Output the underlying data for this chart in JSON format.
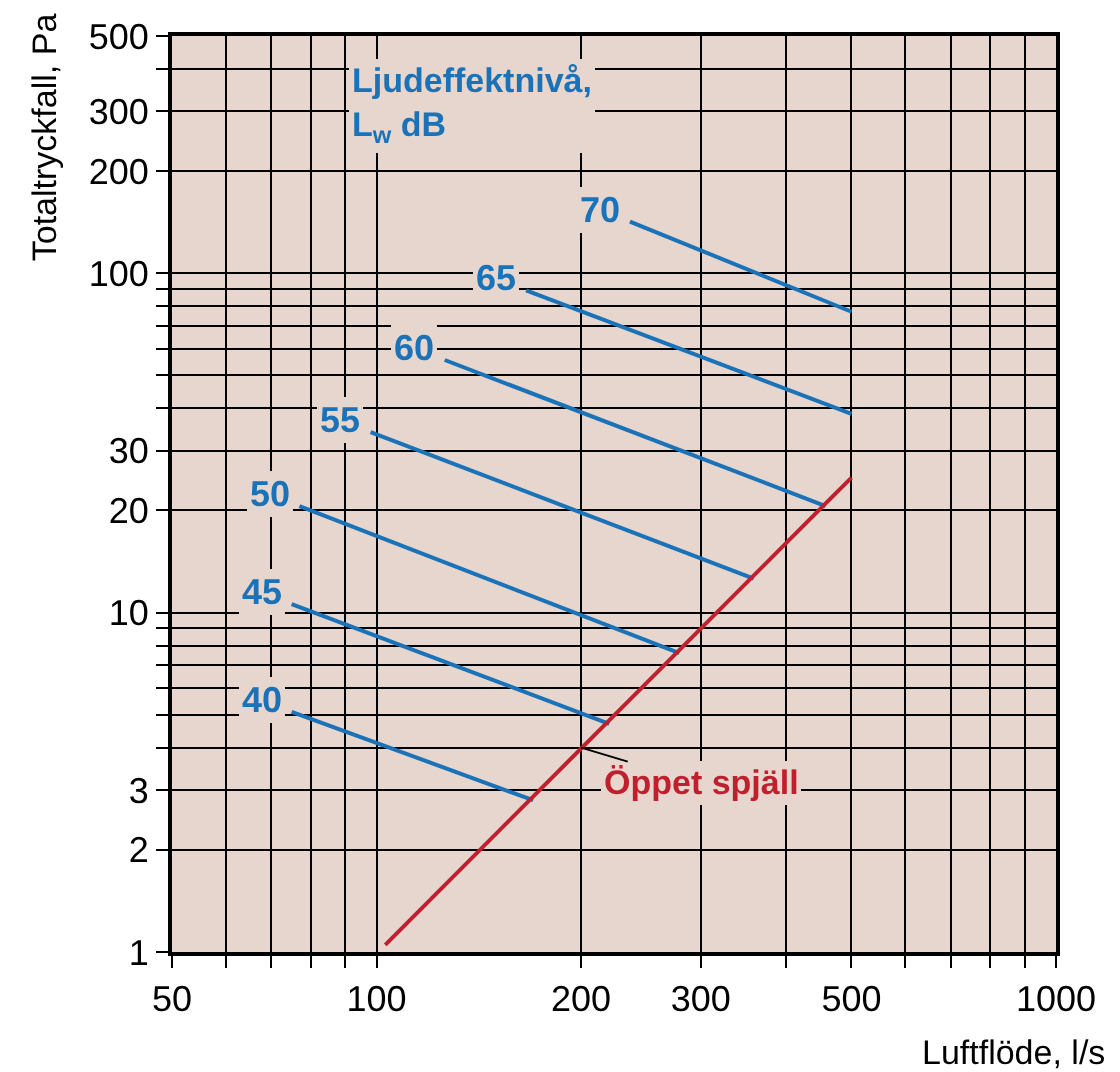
{
  "chart_data": {
    "type": "line",
    "xlabel": "Luftflöde, l/s",
    "ylabel": "Totaltryckfall, Pa",
    "legend_title": "Ljudeffektnivå,\nL$_{w}$ dB",
    "log": "xy",
    "grid": true,
    "legend": false,
    "xlim": [
      50,
      1000
    ],
    "ylim": [
      1,
      500
    ],
    "xticks": [
      50,
      {
        "value": 60,
        "label": null
      },
      {
        "value": 70,
        "label": null
      },
      {
        "value": 80,
        "label": null
      },
      {
        "value": 90,
        "label": null
      },
      100,
      200,
      300,
      {
        "value": 400,
        "label": null
      },
      500,
      {
        "value": 600,
        "label": null
      },
      {
        "value": 700,
        "label": null
      },
      {
        "value": 800,
        "label": null
      },
      {
        "value": 900,
        "label": null
      },
      1000
    ],
    "yticks": [
      1,
      2,
      3,
      {
        "value": 4,
        "label": null
      },
      {
        "value": 5,
        "label": null
      },
      {
        "value": 6,
        "label": null
      },
      {
        "value": 7,
        "label": null
      },
      {
        "value": 8,
        "label": null
      },
      {
        "value": 9,
        "label": null
      },
      10,
      20,
      30,
      {
        "value": 40,
        "label": null
      },
      {
        "value": 50,
        "label": null
      },
      {
        "value": 60,
        "label": null
      },
      {
        "value": 70,
        "label": null
      },
      {
        "value": 80,
        "label": null
      },
      {
        "value": 90,
        "label": null
      },
      100,
      200,
      300,
      {
        "value": 400,
        "label": null
      },
      500
    ],
    "series": [
      {
        "name": "70",
        "color": "#1a72b8",
        "x": [
          236,
          500
        ],
        "values": [
          142,
          77
        ]
      },
      {
        "name": "65",
        "color": "#1a72b8",
        "x": [
          166,
          500
        ],
        "values": [
          89,
          38.5
        ]
      },
      {
        "name": "60",
        "color": "#1a72b8",
        "x": [
          126,
          458
        ],
        "values": [
          55.5,
          20.6
        ]
      },
      {
        "name": "55",
        "color": "#1a72b8",
        "x": [
          98,
          359
        ],
        "values": [
          34,
          12.6
        ]
      },
      {
        "name": "50",
        "color": "#1a72b8",
        "x": [
          77,
          279
        ],
        "values": [
          20.6,
          7.6
        ]
      },
      {
        "name": "45",
        "color": "#1a72b8",
        "x": [
          75,
          220
        ],
        "values": [
          10.6,
          4.7
        ]
      },
      {
        "name": "40",
        "color": "#1a72b8",
        "x": [
          75,
          170
        ],
        "values": [
          5.1,
          2.8
        ]
      },
      {
        "color": "#c0202e",
        "x": [
          103,
          500
        ],
        "values": [
          1.05,
          25
        ]
      }
    ],
    "annotations": [
      {
        "text": "Öppet spjäll",
        "x": 200,
        "y": 4
      }
    ]
  }
}
